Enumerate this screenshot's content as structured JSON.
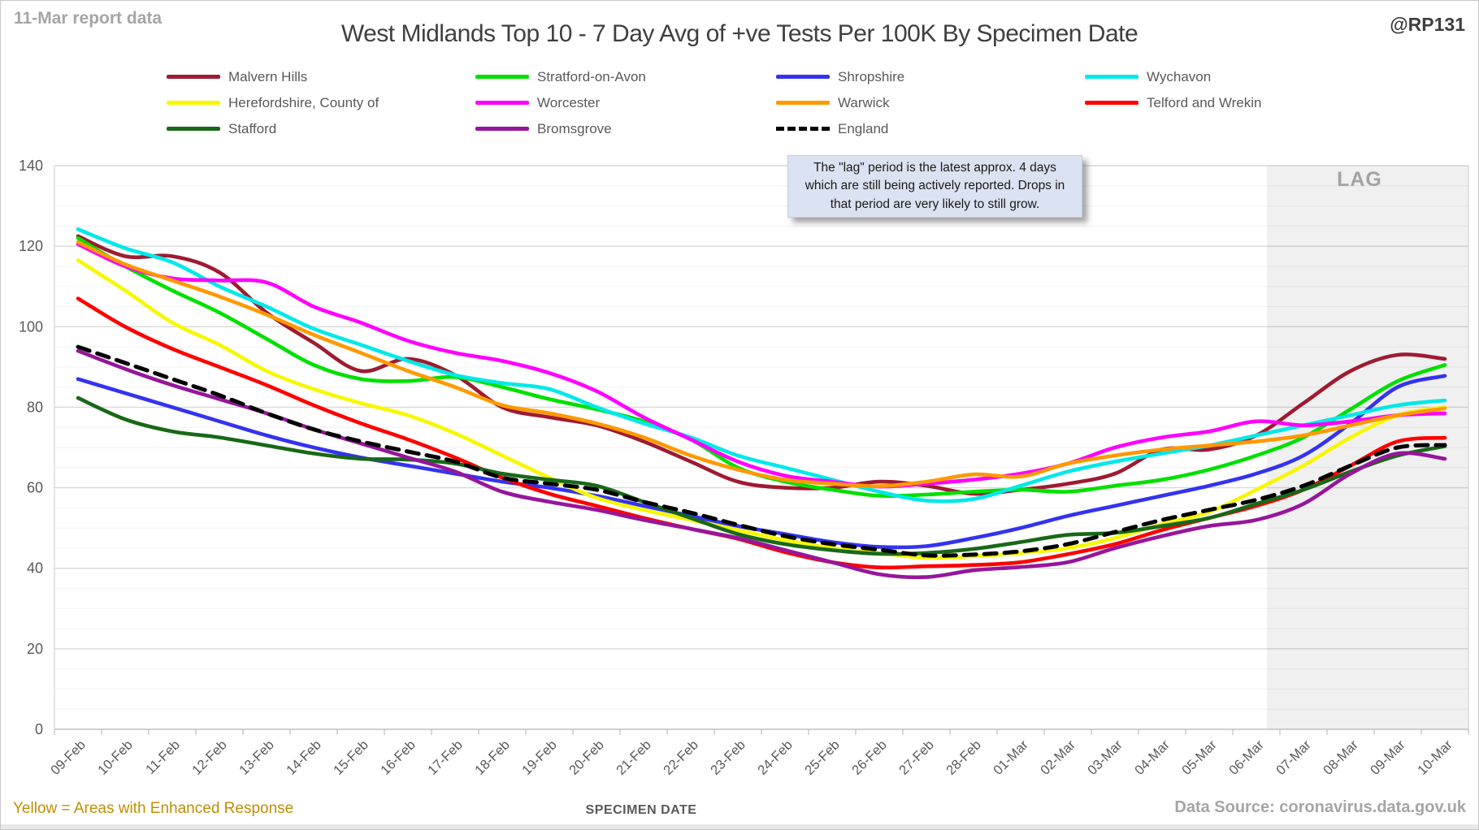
{
  "header": {
    "report_note": "11-Mar report data",
    "title": "West Midlands Top 10 - 7 Day Avg of +ve Tests Per 100K By Specimen Date",
    "handle": "@RP131"
  },
  "annotation": {
    "text": "The \"lag\" period is the latest approx. 4 days which are still being actively reported.  Drops in that period are very likely to still grow."
  },
  "lag_label": "LAG",
  "footer": {
    "yellow_note": "Yellow = Areas with Enhanced Response",
    "x_axis_title": "SPECIMEN DATE",
    "data_source": "Data Source: coronavirus.data.gov.uk"
  },
  "legend": {
    "items": [
      {
        "label": "Malvern Hills",
        "color": "#9e1b32",
        "dash": false
      },
      {
        "label": "Stratford-on-Avon",
        "color": "#00e000",
        "dash": false
      },
      {
        "label": "Shropshire",
        "color": "#3333f0",
        "dash": false
      },
      {
        "label": "Wychavon",
        "color": "#00e8e8",
        "dash": false
      },
      {
        "label": "Herefordshire, County of",
        "color": "#f7f700",
        "dash": false
      },
      {
        "label": "Worcester",
        "color": "#ff00ff",
        "dash": false
      },
      {
        "label": "Warwick",
        "color": "#ff9900",
        "dash": false
      },
      {
        "label": "Telford and Wrekin",
        "color": "#ff0000",
        "dash": false
      },
      {
        "label": "Stafford",
        "color": "#186818",
        "dash": false
      },
      {
        "label": "Bromsgrove",
        "color": "#96169b",
        "dash": false
      },
      {
        "label": "England",
        "color": "#000000",
        "dash": true
      }
    ]
  },
  "chart_data": {
    "type": "line",
    "title": "West Midlands Top 10 - 7 Day Avg of +ve Tests Per 100K By Specimen Date",
    "xlabel": "SPECIMEN DATE",
    "ylabel": "",
    "ylim": [
      0,
      140
    ],
    "y_ticks": [
      0,
      20,
      40,
      60,
      80,
      100,
      120,
      140
    ],
    "grid": {
      "minor_step": 5,
      "major_step": 20
    },
    "lag_region": {
      "from_label": "06-Mar",
      "to_label": "10-Mar"
    },
    "x": [
      "09-Feb",
      "10-Feb",
      "11-Feb",
      "12-Feb",
      "13-Feb",
      "14-Feb",
      "15-Feb",
      "16-Feb",
      "17-Feb",
      "18-Feb",
      "19-Feb",
      "20-Feb",
      "21-Feb",
      "22-Feb",
      "23-Feb",
      "24-Feb",
      "25-Feb",
      "26-Feb",
      "27-Feb",
      "28-Feb",
      "01-Mar",
      "02-Mar",
      "03-Mar",
      "04-Mar",
      "05-Mar",
      "06-Mar",
      "07-Mar",
      "08-Mar",
      "09-Mar",
      "10-Mar"
    ],
    "series": [
      {
        "name": "Malvern Hills",
        "color": "#9e1b32",
        "dash": false,
        "values": [
          122.5,
          117.5,
          117.5,
          113.5,
          103.5,
          96,
          89,
          92,
          88,
          80,
          77.5,
          75.5,
          71.5,
          66.5,
          61.5,
          60,
          60,
          61.5,
          60.5,
          58.5,
          59.5,
          61,
          63.5,
          69.5,
          69.5,
          73,
          81,
          89,
          93,
          92
        ]
      },
      {
        "name": "Stratford-on-Avon",
        "color": "#00e000",
        "dash": false,
        "values": [
          122,
          115,
          109,
          103.5,
          97,
          90.5,
          87,
          86.5,
          87.5,
          85,
          82,
          79.5,
          76.5,
          72,
          65,
          61.5,
          59.5,
          58,
          58.3,
          59,
          59.5,
          59,
          60.5,
          62,
          64.5,
          68,
          72.5,
          79.5,
          86.5,
          90.5
        ]
      },
      {
        "name": "Shropshire",
        "color": "#3333f0",
        "dash": false,
        "values": [
          87,
          83.5,
          80,
          76.5,
          73,
          70,
          67.5,
          65.5,
          63.5,
          61.5,
          60,
          58,
          55.5,
          53,
          50.5,
          48.5,
          46.5,
          45.3,
          45.5,
          47.5,
          50,
          53,
          55.5,
          58,
          60.5,
          63.5,
          68,
          76,
          85,
          87.8
        ]
      },
      {
        "name": "Wychavon",
        "color": "#00e8e8",
        "dash": false,
        "values": [
          124.2,
          119.5,
          116,
          110,
          105,
          99.5,
          95.5,
          91.5,
          88,
          86,
          84.5,
          80,
          76,
          72.5,
          68,
          65,
          62,
          59,
          56.8,
          57.2,
          60.5,
          64,
          66.5,
          68.5,
          70.5,
          73,
          75.5,
          78,
          80.5,
          81.7
        ]
      },
      {
        "name": "Herefordshire, County of",
        "color": "#f7f700",
        "dash": false,
        "values": [
          116.5,
          109,
          101,
          95.5,
          89,
          84.5,
          81,
          78,
          73.5,
          68,
          62.5,
          57.5,
          54.5,
          52,
          49.5,
          47,
          45,
          43.8,
          42.6,
          43,
          43.8,
          45,
          47.5,
          51,
          54,
          59.5,
          65.5,
          72.5,
          78,
          80
        ]
      },
      {
        "name": "Worcester",
        "color": "#ff00ff",
        "dash": false,
        "values": [
          120.5,
          115,
          112,
          111.5,
          111,
          105,
          101,
          96.5,
          93.5,
          91.5,
          88.5,
          84,
          77.5,
          72,
          66.5,
          63,
          61.5,
          60.3,
          61,
          62,
          63.5,
          66,
          70,
          72.5,
          74,
          76.5,
          75.5,
          76.5,
          78,
          78.5
        ]
      },
      {
        "name": "Warwick",
        "color": "#ff9900",
        "dash": false,
        "values": [
          121,
          115.5,
          111.5,
          107.5,
          103,
          98,
          93.5,
          89,
          85,
          80.5,
          78.5,
          76,
          72.5,
          68,
          64.5,
          62,
          61,
          60.4,
          61.5,
          63.3,
          62.8,
          66,
          68,
          69.5,
          70.5,
          71.5,
          73,
          75.5,
          78,
          79.7
        ]
      },
      {
        "name": "Telford and Wrekin",
        "color": "#ff0000",
        "dash": false,
        "values": [
          107,
          100,
          94.5,
          90,
          85.5,
          80.5,
          76,
          72,
          67.5,
          62.5,
          58.5,
          55.5,
          52.5,
          49.8,
          47.3,
          44,
          41.5,
          40.2,
          40.5,
          40.8,
          41.5,
          43.5,
          46,
          49.5,
          52.5,
          55.5,
          59.5,
          65.5,
          71.5,
          72.4
        ]
      },
      {
        "name": "Stafford",
        "color": "#186818",
        "dash": false,
        "values": [
          82.3,
          77,
          74,
          72.5,
          70.5,
          68.5,
          67.2,
          67,
          66,
          63.5,
          62,
          60.5,
          56.5,
          52.5,
          48.5,
          46,
          44.5,
          43.6,
          43.8,
          44.8,
          46.5,
          48.3,
          48.8,
          50.5,
          52.5,
          56,
          59.5,
          64,
          68,
          70.3
        ]
      },
      {
        "name": "Bromsgrove",
        "color": "#96169b",
        "dash": false,
        "values": [
          94,
          89.5,
          85.5,
          82,
          78.5,
          74.5,
          71,
          67.5,
          64,
          59,
          56.5,
          54.5,
          52,
          49.8,
          47.5,
          44.5,
          41.5,
          38.5,
          37.8,
          39.5,
          40.3,
          41.5,
          45,
          48,
          50.5,
          52,
          56,
          63.5,
          68.5,
          67.2
        ]
      },
      {
        "name": "England",
        "color": "#000000",
        "dash": true,
        "values": [
          95,
          91,
          87,
          83,
          78.5,
          74.5,
          71.5,
          69,
          66.5,
          62.5,
          61,
          59.5,
          56.5,
          53.8,
          50.8,
          48,
          46,
          44.6,
          43.2,
          43.4,
          44.2,
          46,
          49,
          52,
          54.5,
          57,
          60.5,
          65.5,
          70,
          70.6
        ]
      }
    ]
  }
}
